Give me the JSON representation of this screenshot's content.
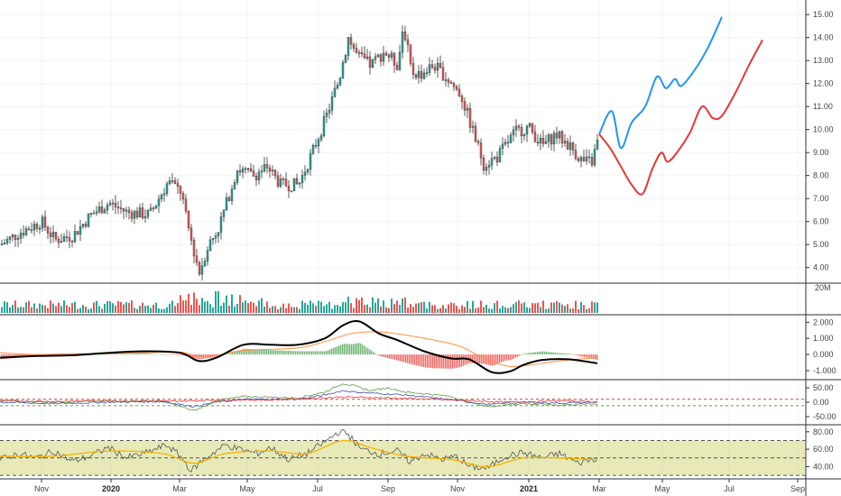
{
  "chart_data": [
    {
      "type": "candlestick",
      "x_axis": {
        "labels": [
          "Nov",
          "2020",
          "Mar",
          "May",
          "Jul",
          "Sep",
          "Nov",
          "2021",
          "Mar",
          "May",
          "Jul",
          "Sep"
        ],
        "bold": [
          "2020",
          "2021"
        ]
      },
      "y_axis": {
        "ticks": [
          4.0,
          5.0,
          6.0,
          7.0,
          8.0,
          9.0,
          10.0,
          11.0,
          12.0,
          13.0,
          14.0,
          15.0
        ],
        "tick_labels": [
          "4.00",
          "5.00",
          "6.00",
          "7.00",
          "8.00",
          "9.00",
          "10.00",
          "11.00",
          "12.00",
          "13.00",
          "14.00",
          "15.00"
        ],
        "range": [
          3.4,
          15.4
        ]
      },
      "price_path": [
        [
          0,
          5.0
        ],
        [
          20,
          5.5
        ],
        [
          45,
          6.0
        ],
        [
          60,
          5.2
        ],
        [
          80,
          5.4
        ],
        [
          100,
          6.3
        ],
        [
          120,
          6.8
        ],
        [
          140,
          6.4
        ],
        [
          165,
          6.3
        ],
        [
          185,
          7.7
        ],
        [
          200,
          7.3
        ],
        [
          205,
          6.2
        ],
        [
          212,
          5.0
        ],
        [
          220,
          3.8
        ],
        [
          230,
          5.0
        ],
        [
          240,
          5.6
        ],
        [
          250,
          6.8
        ],
        [
          262,
          8.3
        ],
        [
          280,
          8.0
        ],
        [
          295,
          8.4
        ],
        [
          310,
          7.6
        ],
        [
          330,
          7.6
        ],
        [
          345,
          9.0
        ],
        [
          360,
          10.5
        ],
        [
          375,
          12.2
        ],
        [
          385,
          14.0
        ],
        [
          395,
          13.2
        ],
        [
          410,
          12.8
        ],
        [
          425,
          13.4
        ],
        [
          440,
          12.8
        ],
        [
          446,
          14.6
        ],
        [
          455,
          12.5
        ],
        [
          465,
          12.4
        ],
        [
          480,
          12.8
        ],
        [
          495,
          12.2
        ],
        [
          510,
          11.5
        ],
        [
          520,
          10.3
        ],
        [
          535,
          8.5
        ],
        [
          550,
          8.8
        ],
        [
          570,
          9.9
        ],
        [
          585,
          10.1
        ],
        [
          600,
          9.3
        ],
        [
          615,
          9.8
        ],
        [
          630,
          9.3
        ],
        [
          645,
          8.6
        ],
        [
          655,
          8.6
        ],
        [
          662,
          9.6
        ]
      ],
      "forecast_series": [
        {
          "color": "#2196f3",
          "points": [
            [
              664,
              9.8
            ],
            [
              678,
              10.8
            ],
            [
              688,
              9.2
            ],
            [
              700,
              10.3
            ],
            [
              715,
              11.0
            ],
            [
              728,
              12.3
            ],
            [
              738,
              11.8
            ],
            [
              748,
              12.2
            ],
            [
              755,
              11.9
            ],
            [
              770,
              12.6
            ],
            [
              785,
              13.6
            ],
            [
              800,
              14.9
            ]
          ]
        },
        {
          "color": "#e53935",
          "points": [
            [
              664,
              9.8
            ],
            [
              676,
              9.2
            ],
            [
              688,
              8.4
            ],
            [
              700,
              7.6
            ],
            [
              712,
              7.2
            ],
            [
              723,
              8.3
            ],
            [
              733,
              9.0
            ],
            [
              740,
              8.6
            ],
            [
              752,
              9.1
            ],
            [
              765,
              9.9
            ],
            [
              778,
              11.0
            ],
            [
              790,
              10.5
            ],
            [
              800,
              10.6
            ],
            [
              815,
              11.6
            ],
            [
              830,
              12.8
            ],
            [
              845,
              13.9
            ]
          ]
        }
      ]
    },
    {
      "type": "bar",
      "name": "Volume",
      "y_axis": {
        "tick_labels": [
          "20M"
        ]
      },
      "colors": {
        "up": "#26a69a",
        "down": "#ef5350"
      }
    },
    {
      "type": "line",
      "name": "MACD",
      "y_axis": {
        "ticks": [
          2.0,
          1.0,
          0.0,
          -1.0
        ],
        "tick_labels": [
          "2.000",
          "1.000",
          "0.000",
          "-1.000"
        ],
        "range": [
          -1.45,
          2.35
        ]
      },
      "macd_line": [
        [
          0,
          -0.2
        ],
        [
          40,
          -0.1
        ],
        [
          80,
          -0.05
        ],
        [
          120,
          0.1
        ],
        [
          160,
          0.2
        ],
        [
          200,
          0.1
        ],
        [
          220,
          -0.4
        ],
        [
          240,
          -0.2
        ],
        [
          270,
          0.6
        ],
        [
          300,
          0.6
        ],
        [
          330,
          0.6
        ],
        [
          360,
          1.0
        ],
        [
          380,
          1.8
        ],
        [
          398,
          2.05
        ],
        [
          420,
          1.3
        ],
        [
          440,
          0.9
        ],
        [
          470,
          0.2
        ],
        [
          500,
          -0.25
        ],
        [
          520,
          -0.3
        ],
        [
          545,
          -1.1
        ],
        [
          565,
          -1.05
        ],
        [
          580,
          -0.65
        ],
        [
          600,
          -0.35
        ],
        [
          630,
          -0.3
        ],
        [
          662,
          -0.55
        ]
      ],
      "signal_line": [
        [
          0,
          0.1
        ],
        [
          40,
          0.0
        ],
        [
          80,
          0.05
        ],
        [
          120,
          0.05
        ],
        [
          180,
          0.15
        ],
        [
          200,
          0.15
        ],
        [
          220,
          -0.1
        ],
        [
          240,
          -0.05
        ],
        [
          270,
          0.25
        ],
        [
          330,
          0.4
        ],
        [
          360,
          0.8
        ],
        [
          390,
          1.3
        ],
        [
          420,
          1.4
        ],
        [
          450,
          1.2
        ],
        [
          480,
          0.9
        ],
        [
          510,
          0.5
        ],
        [
          535,
          -0.2
        ],
        [
          560,
          -0.7
        ],
        [
          580,
          -0.7
        ],
        [
          620,
          -0.4
        ],
        [
          662,
          -0.2
        ]
      ]
    },
    {
      "type": "line",
      "name": "Directional indicator",
      "y_axis": {
        "ticks": [
          50.0,
          0.0,
          -50.0
        ],
        "tick_labels": [
          "50.00",
          "0.00",
          "-50.00"
        ],
        "range": [
          -72,
          72
        ]
      },
      "series": [
        {
          "color": "#5c9b3c",
          "points": [
            [
              0,
              5
            ],
            [
              60,
              0
            ],
            [
              120,
              5
            ],
            [
              180,
              5
            ],
            [
              215,
              -30
            ],
            [
              240,
              5
            ],
            [
              270,
              20
            ],
            [
              330,
              15
            ],
            [
              360,
              35
            ],
            [
              380,
              65
            ],
            [
              395,
              55
            ],
            [
              410,
              40
            ],
            [
              430,
              50
            ],
            [
              450,
              35
            ],
            [
              470,
              30
            ],
            [
              500,
              20
            ],
            [
              520,
              0
            ],
            [
              540,
              -15
            ],
            [
              580,
              -5
            ],
            [
              620,
              -10
            ],
            [
              662,
              -5
            ]
          ]
        },
        {
          "color": "#3f51b5",
          "points": [
            [
              0,
              0
            ],
            [
              60,
              -5
            ],
            [
              120,
              0
            ],
            [
              180,
              2
            ],
            [
              215,
              -15
            ],
            [
              240,
              0
            ],
            [
              270,
              10
            ],
            [
              330,
              10
            ],
            [
              360,
              25
            ],
            [
              380,
              40
            ],
            [
              395,
              35
            ],
            [
              420,
              30
            ],
            [
              450,
              25
            ],
            [
              480,
              15
            ],
            [
              510,
              5
            ],
            [
              540,
              -8
            ],
            [
              580,
              0
            ],
            [
              620,
              -3
            ],
            [
              662,
              0
            ]
          ]
        },
        {
          "color": "#e53935",
          "points": [
            [
              0,
              5
            ],
            [
              60,
              3
            ],
            [
              120,
              5
            ],
            [
              180,
              3
            ],
            [
              215,
              5
            ],
            [
              240,
              8
            ],
            [
              300,
              8
            ],
            [
              380,
              18
            ],
            [
              430,
              15
            ],
            [
              480,
              10
            ],
            [
              520,
              5
            ],
            [
              560,
              0
            ],
            [
              620,
              5
            ],
            [
              662,
              2
            ]
          ]
        }
      ]
    },
    {
      "type": "line",
      "name": "RSI",
      "y_axis": {
        "ticks": [
          80.0,
          60.0,
          40.0
        ],
        "tick_labels": [
          "80.00",
          "60.00",
          "40.00"
        ],
        "range": [
          27,
          86
        ]
      },
      "rsi_series": {
        "color": "#555555",
        "points": [
          [
            0,
            48
          ],
          [
            20,
            55
          ],
          [
            40,
            50
          ],
          [
            60,
            58
          ],
          [
            80,
            46
          ],
          [
            100,
            52
          ],
          [
            120,
            62
          ],
          [
            140,
            50
          ],
          [
            160,
            55
          ],
          [
            185,
            65
          ],
          [
            200,
            52
          ],
          [
            212,
            35
          ],
          [
            222,
            45
          ],
          [
            235,
            55
          ],
          [
            250,
            65
          ],
          [
            265,
            60
          ],
          [
            285,
            55
          ],
          [
            300,
            62
          ],
          [
            320,
            48
          ],
          [
            340,
            55
          ],
          [
            360,
            68
          ],
          [
            375,
            80
          ],
          [
            385,
            78
          ],
          [
            400,
            60
          ],
          [
            420,
            55
          ],
          [
            440,
            58
          ],
          [
            455,
            45
          ],
          [
            470,
            55
          ],
          [
            490,
            48
          ],
          [
            505,
            52
          ],
          [
            520,
            40
          ],
          [
            540,
            38
          ],
          [
            560,
            52
          ],
          [
            580,
            56
          ],
          [
            600,
            50
          ],
          [
            620,
            55
          ],
          [
            640,
            44
          ],
          [
            662,
            50
          ]
        ]
      },
      "rsi_ma": {
        "color": "#f4b400",
        "points": [
          [
            0,
            52
          ],
          [
            60,
            52
          ],
          [
            120,
            58
          ],
          [
            180,
            55
          ],
          [
            215,
            44
          ],
          [
            250,
            55
          ],
          [
            300,
            58
          ],
          [
            340,
            55
          ],
          [
            380,
            70
          ],
          [
            410,
            62
          ],
          [
            450,
            52
          ],
          [
            500,
            48
          ],
          [
            540,
            40
          ],
          [
            580,
            50
          ],
          [
            620,
            50
          ],
          [
            662,
            48
          ]
        ]
      },
      "band_range": [
        30,
        70
      ],
      "midline": 50
    }
  ]
}
